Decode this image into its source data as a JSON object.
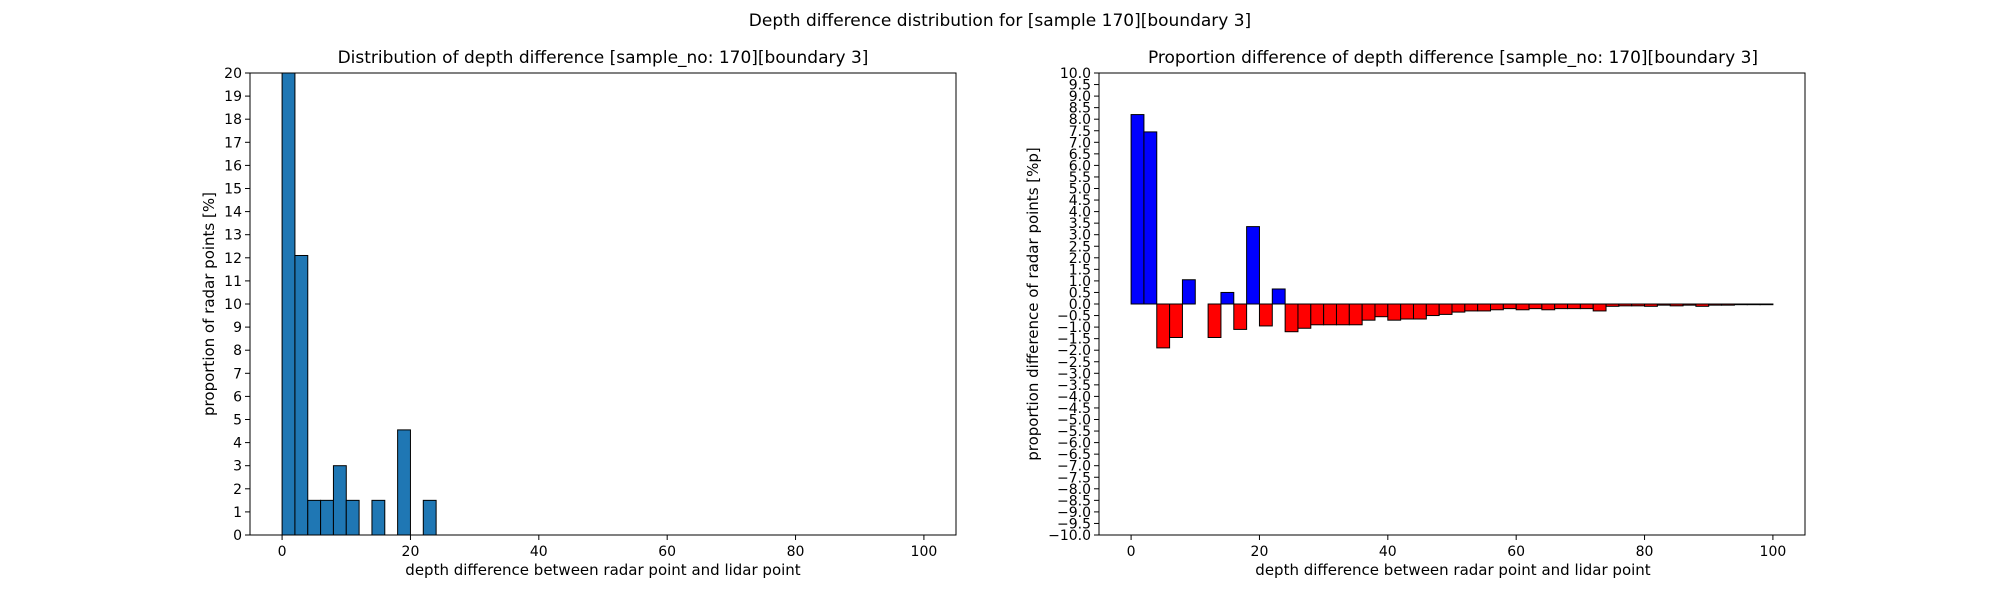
{
  "figure_title": "Depth difference distribution for [sample 170][boundary 3]",
  "chart_data": [
    {
      "type": "bar",
      "title": "Distribution of depth difference [sample_no: 170][boundary 3]",
      "xlabel": "depth difference between radar point and lidar point",
      "ylabel": "proportion of radar points [%]",
      "xlim": [
        -5,
        105
      ],
      "ylim": [
        0,
        20
      ],
      "xticks": [
        0,
        20,
        40,
        60,
        80,
        100
      ],
      "yticks": [
        0,
        1,
        2,
        3,
        4,
        5,
        6,
        7,
        8,
        9,
        10,
        11,
        12,
        13,
        14,
        15,
        16,
        17,
        18,
        19,
        20
      ],
      "bar_width": 2,
      "color": "#1f77b4",
      "x": [
        1,
        3,
        5,
        7,
        9,
        11,
        15,
        19,
        23
      ],
      "values": [
        20,
        12.1,
        1.5,
        1.5,
        3.0,
        1.5,
        1.5,
        4.55,
        1.5
      ]
    },
    {
      "type": "bar",
      "title": "Proportion difference of depth difference [sample_no: 170][boundary 3]",
      "xlabel": "depth difference between radar point and lidar point",
      "ylabel": "proportion difference of radar points [%p]",
      "xlim": [
        -5,
        105
      ],
      "ylim": [
        -10,
        10
      ],
      "xticks": [
        0,
        20,
        40,
        60,
        80,
        100
      ],
      "yticks": [
        -10,
        -9.5,
        -9,
        -8.5,
        -8,
        -7.5,
        -7,
        -6.5,
        -6,
        -5.5,
        -5,
        -4.5,
        -4,
        -3.5,
        -3,
        -2.5,
        -2,
        -1.5,
        -1,
        -0.5,
        0,
        0.5,
        1,
        1.5,
        2,
        2.5,
        3,
        3.5,
        4,
        4.5,
        5,
        5.5,
        6,
        6.5,
        7,
        7.5,
        8,
        8.5,
        9,
        9.5,
        10
      ],
      "bar_width": 2,
      "positive_color": "#0000ff",
      "negative_color": "#ff0000",
      "x": [
        1,
        3,
        5,
        7,
        9,
        11,
        13,
        15,
        17,
        19,
        21,
        23,
        25,
        27,
        29,
        31,
        33,
        35,
        37,
        39,
        41,
        43,
        45,
        47,
        49,
        51,
        53,
        55,
        57,
        59,
        61,
        63,
        65,
        67,
        69,
        71,
        73,
        75,
        77,
        79,
        81,
        83,
        85,
        87,
        89,
        91,
        93,
        95,
        97,
        99
      ],
      "values": [
        8.2,
        7.45,
        -1.9,
        -1.45,
        1.05,
        0,
        -1.45,
        0.5,
        -1.1,
        3.35,
        -0.95,
        0.65,
        -1.2,
        -1.05,
        -0.9,
        -0.9,
        -0.9,
        -0.9,
        -0.7,
        -0.55,
        -0.7,
        -0.65,
        -0.65,
        -0.5,
        -0.45,
        -0.35,
        -0.3,
        -0.3,
        -0.25,
        -0.2,
        -0.25,
        -0.2,
        -0.25,
        -0.2,
        -0.2,
        -0.2,
        -0.3,
        -0.1,
        -0.08,
        -0.08,
        -0.1,
        -0.05,
        -0.08,
        -0.05,
        -0.1,
        -0.05,
        -0.05,
        -0.03,
        -0.03,
        -0.03
      ]
    }
  ]
}
